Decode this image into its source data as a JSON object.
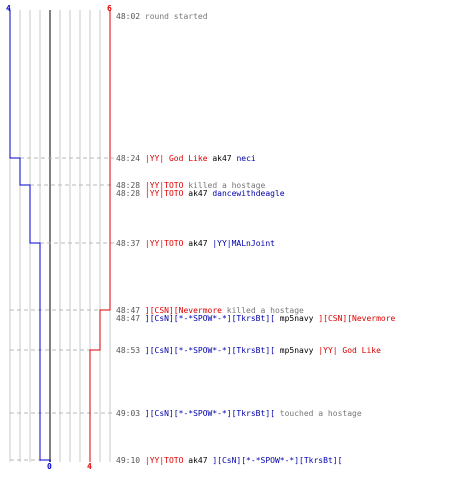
{
  "axis": {
    "top_left": "4",
    "top_right": "6",
    "bottom_blue": "0",
    "bottom_red": "4"
  },
  "colors": {
    "blue": "#0000cc",
    "red": "#dd0000",
    "grid": "#c8c8c8"
  },
  "events": [
    {
      "time": "48:02",
      "parts": [
        {
          "text": "round started",
          "color": "gray"
        }
      ]
    },
    {
      "time": "48:24",
      "parts": [
        {
          "text": "|YY| God Like",
          "color": "red"
        },
        {
          "text": " ak47 ",
          "color": "black"
        },
        {
          "text": "neci",
          "color": "blue"
        }
      ]
    },
    {
      "time": "48:28",
      "parts": [
        {
          "text": "|YY|TOTO",
          "color": "red"
        },
        {
          "text": " killed a hostage",
          "color": "gray"
        }
      ]
    },
    {
      "time": "48:28",
      "parts": [
        {
          "text": "|YY|TOTO",
          "color": "red"
        },
        {
          "text": " ak47 ",
          "color": "black"
        },
        {
          "text": "dancewithdeagle",
          "color": "blue"
        }
      ]
    },
    {
      "time": "48:37",
      "parts": [
        {
          "text": "|YY|TOTO",
          "color": "red"
        },
        {
          "text": " ak47 ",
          "color": "black"
        },
        {
          "text": "|YY|MALnJoint",
          "color": "blue"
        }
      ]
    },
    {
      "time": "48:47",
      "parts": [
        {
          "text": "][CSN][Nevermore",
          "color": "red"
        },
        {
          "text": " killed a hostage",
          "color": "gray"
        }
      ]
    },
    {
      "time": "48:47",
      "parts": [
        {
          "text": "][CsN][*-*SPOW*-*][TkrsBt][",
          "color": "blue"
        },
        {
          "text": " mp5navy ",
          "color": "black"
        },
        {
          "text": "][CSN][Nevermore",
          "color": "red"
        }
      ]
    },
    {
      "time": "48:53",
      "parts": [
        {
          "text": "][CsN][*-*SPOW*-*][TkrsBt][",
          "color": "blue"
        },
        {
          "text": " mp5navy ",
          "color": "black"
        },
        {
          "text": "|YY| God Like",
          "color": "red"
        }
      ]
    },
    {
      "time": "49:03",
      "parts": [
        {
          "text": "][CsN][*-*SPOW*-*][TkrsBt][",
          "color": "blue"
        },
        {
          "text": " touched a hostage",
          "color": "gray"
        }
      ]
    },
    {
      "time": "49:10",
      "parts": [
        {
          "text": "|YY|TOTO",
          "color": "red"
        },
        {
          "text": " ak47 ",
          "color": "black"
        },
        {
          "text": "][CsN][*-*SPOW*-*][TkrsBt][",
          "color": "blue"
        }
      ]
    }
  ]
}
